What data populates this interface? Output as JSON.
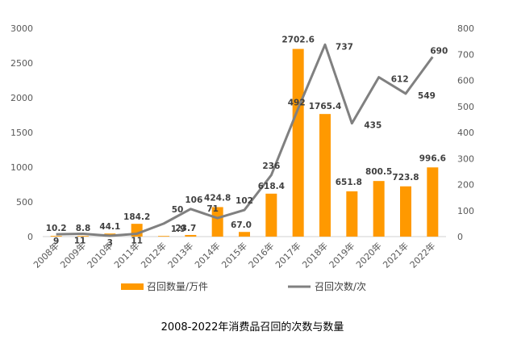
{
  "chart_data": {
    "type": "bar",
    "title": "2008-2022年消费品召回的次数与数量",
    "categories": [
      "2008年",
      "2009年",
      "2010年",
      "2011年",
      "2012年",
      "2013年",
      "2014年",
      "2015年",
      "2016年",
      "2017年",
      "2018年",
      "2019年",
      "2020年",
      "2021年",
      "2022年"
    ],
    "series": [
      {
        "name": "召回数量/万件",
        "type": "bar",
        "axis": "left",
        "color": "#FF9900",
        "values": [
          10.2,
          8.8,
          44.1,
          184.2,
          1.9,
          23.7,
          424.8,
          67.0,
          618.4,
          2702.6,
          1765.4,
          651.8,
          800.5,
          723.8,
          996.6
        ],
        "labels": [
          "10.2",
          "8.8",
          "44.1",
          "184.2",
          "1.9",
          "23.7",
          "424.8",
          "67.0",
          "618.4",
          "2702.6",
          "1765.4",
          "651.8",
          "800.5",
          "723.8",
          "996.6"
        ]
      },
      {
        "name": "召回次数/次",
        "type": "line",
        "axis": "right",
        "color": "#808080",
        "values": [
          9,
          11,
          3,
          11,
          50,
          106,
          71,
          102,
          236,
          492,
          737,
          435,
          612,
          549,
          690
        ],
        "labels": [
          "9",
          "11",
          "3",
          "11",
          "50",
          "106",
          "71",
          "102",
          "236",
          "492",
          "737",
          "435",
          "612",
          "549",
          "690"
        ]
      }
    ],
    "y_left": {
      "min": 0,
      "max": 3000,
      "ticks": [
        "0",
        "500",
        "1000",
        "1500",
        "2000",
        "2500",
        "3000"
      ]
    },
    "y_right": {
      "min": 0,
      "max": 800,
      "ticks": [
        "0",
        "100",
        "200",
        "300",
        "400",
        "500",
        "600",
        "700",
        "800"
      ]
    },
    "grid": false,
    "legend_position": "bottom"
  }
}
